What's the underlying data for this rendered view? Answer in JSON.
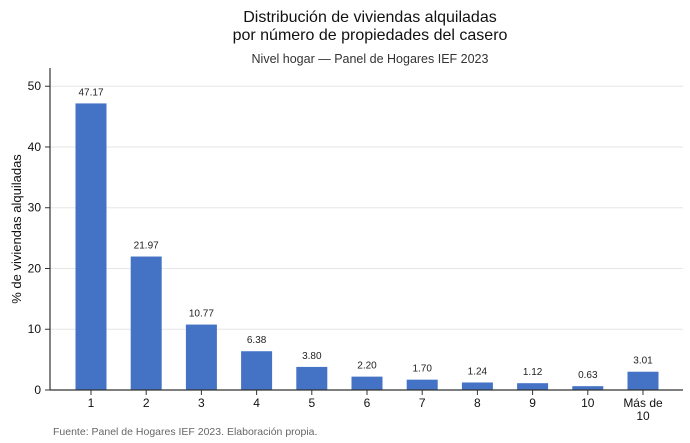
{
  "chart_data": {
    "type": "bar",
    "title": [
      "Distribución de viviendas alquiladas",
      "por número de propiedades del casero"
    ],
    "subtitle": "Nivel hogar — Panel de Hogares IEF 2023",
    "xlabel": "",
    "ylabel": "% de viviendas alquiladas",
    "categories": [
      [
        "1"
      ],
      [
        "2"
      ],
      [
        "3"
      ],
      [
        "4"
      ],
      [
        "5"
      ],
      [
        "6"
      ],
      [
        "7"
      ],
      [
        "8"
      ],
      [
        "9"
      ],
      [
        "10"
      ],
      [
        "Más de",
        "10"
      ]
    ],
    "values": [
      47.17,
      21.97,
      10.77,
      6.38,
      3.8,
      2.2,
      1.7,
      1.24,
      1.12,
      0.63,
      3.01
    ],
    "data_labels": [
      "47.17",
      "21.97",
      "10.77",
      "6.38",
      "3.80",
      "2.20",
      "1.70",
      "1.24",
      "1.12",
      "0.63",
      "3.01"
    ],
    "ylim": [
      0,
      53
    ],
    "yticks": [
      0,
      10,
      20,
      30,
      40,
      50
    ],
    "grid": true,
    "bar_color": "#4472c4",
    "source": "Fuente: Panel de Hogares IEF 2023. Elaboración propia."
  }
}
